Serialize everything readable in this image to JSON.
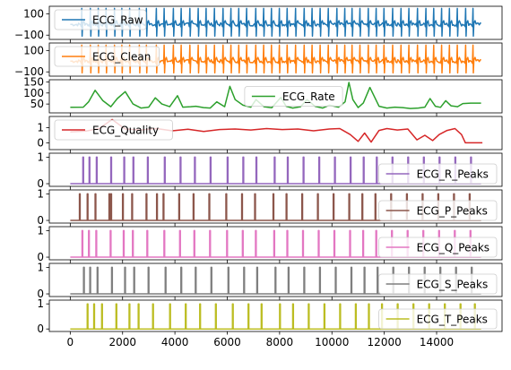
{
  "chart_data": {
    "type": "line",
    "shared_x": {
      "ticks": [
        0,
        2000,
        4000,
        6000,
        8000,
        10000,
        12000,
        14000
      ],
      "tick_labels": [
        "0",
        "2000",
        "4000",
        "6000",
        "8000",
        "10000",
        "12000",
        "14000"
      ],
      "range": [
        -800,
        16500
      ]
    },
    "panels": [
      {
        "name": "ECG_Raw",
        "color": "#1f77b4",
        "kind": "signal",
        "ylim": [
          -140,
          170
        ],
        "yticks": [
          100,
          -100
        ],
        "ytick_labels": [
          "100",
          "−100"
        ],
        "x_range": [
          0,
          15700
        ],
        "amplitude": "-100 to 150",
        "beats_x": [
          450,
          780,
          1080,
          1380,
          1700,
          1980,
          2280,
          2650,
          2920,
          3300,
          3600,
          3950,
          4250,
          4580,
          4900,
          5200,
          5520,
          5850,
          6150,
          6450,
          6750,
          7100,
          7400,
          7700,
          8000,
          8300,
          8620,
          8950,
          9250,
          9560,
          9870,
          10200,
          10500,
          10780,
          11080,
          11400,
          11700,
          12000,
          12330,
          12650,
          12950,
          13280,
          13600,
          13900,
          14200,
          14500,
          14800,
          15120,
          15400
        ],
        "legend": "ECG_Raw",
        "legend_position": "upper-left"
      },
      {
        "name": "ECG_Clean",
        "color": "#ff7f0e",
        "kind": "signal",
        "ylim": [
          -140,
          170
        ],
        "yticks": [
          100,
          -100
        ],
        "ytick_labels": [
          "100",
          "−100"
        ],
        "x_range": [
          0,
          15700
        ],
        "amplitude": "-100 to 150",
        "beats_x": [
          450,
          780,
          1080,
          1380,
          1700,
          1980,
          2280,
          2650,
          2920,
          3300,
          3600,
          3950,
          4250,
          4580,
          4900,
          5200,
          5520,
          5850,
          6150,
          6450,
          6750,
          7100,
          7400,
          7700,
          8000,
          8300,
          8620,
          8950,
          9250,
          9560,
          9870,
          10200,
          10500,
          10780,
          11080,
          11400,
          11700,
          12000,
          12330,
          12650,
          12950,
          13280,
          13600,
          13900,
          14200,
          14500,
          14800,
          15120,
          15400
        ],
        "legend": "ECG_Clean",
        "legend_position": "upper-left"
      },
      {
        "name": "ECG_Rate",
        "color": "#2ca02c",
        "kind": "line",
        "ylim": [
          10,
          160
        ],
        "yticks": [
          150,
          100,
          50
        ],
        "ytick_labels": [
          "150",
          "100",
          "50"
        ],
        "x": [
          0,
          500,
          700,
          950,
          1250,
          1550,
          1800,
          2100,
          2400,
          2700,
          3000,
          3250,
          3500,
          3800,
          4100,
          4300,
          4600,
          4800,
          5100,
          5350,
          5600,
          5900,
          6100,
          6300,
          6600,
          6900,
          7100,
          7400,
          7700,
          8050,
          8250,
          8500,
          8800,
          9050,
          9350,
          9650,
          9900,
          10250,
          10500,
          10650,
          10800,
          11000,
          11200,
          11450,
          11800,
          12100,
          12400,
          12700,
          13000,
          13300,
          13550,
          13750,
          13950,
          14150,
          14350,
          14550,
          14800,
          15000,
          15300,
          15700
        ],
        "y": [
          35,
          36,
          60,
          112,
          65,
          38,
          75,
          106,
          50,
          32,
          36,
          78,
          50,
          38,
          88,
          36,
          38,
          40,
          34,
          32,
          60,
          38,
          130,
          70,
          45,
          36,
          70,
          38,
          33,
          80,
          40,
          32,
          38,
          70,
          40,
          32,
          45,
          36,
          60,
          148,
          70,
          34,
          55,
          125,
          40,
          32,
          36,
          34,
          30,
          32,
          36,
          75,
          40,
          35,
          65,
          42,
          38,
          52,
          54,
          54
        ],
        "legend": "ECG_Rate",
        "legend_position": "center"
      },
      {
        "name": "ECG_Quality",
        "color": "#d62728",
        "kind": "line",
        "ylim": [
          -0.45,
          1.75
        ],
        "yticks": [
          1,
          0
        ],
        "ytick_labels": [
          "1",
          "0"
        ],
        "x": [
          0,
          600,
          1100,
          1600,
          2100,
          2700,
          3300,
          3900,
          4500,
          5100,
          5700,
          6300,
          6900,
          7500,
          8100,
          8700,
          9300,
          9900,
          10300,
          10700,
          11000,
          11250,
          11500,
          11800,
          12100,
          12500,
          12900,
          13250,
          13550,
          13850,
          14100,
          14400,
          14700,
          14950,
          15100,
          15750
        ],
        "y": [
          0.72,
          0.78,
          0.95,
          1.55,
          0.92,
          0.85,
          0.95,
          0.8,
          0.9,
          0.75,
          0.88,
          0.92,
          0.85,
          0.95,
          0.88,
          0.92,
          0.8,
          0.92,
          0.95,
          0.55,
          0.1,
          0.65,
          0.05,
          0.82,
          0.95,
          0.85,
          0.92,
          0.2,
          0.5,
          0.15,
          0.55,
          0.82,
          0.95,
          0.55,
          0.0,
          0.0
        ],
        "legend": "ECG_Quality",
        "legend_position": "upper-left"
      },
      {
        "name": "ECG_R_Peaks",
        "color": "#9467bd",
        "kind": "peaks",
        "ylim": [
          -0.1,
          1.15
        ],
        "yticks": [
          1,
          0
        ],
        "ytick_labels": [
          "1",
          "0"
        ],
        "x_range": [
          0,
          15700
        ],
        "peaks_x": [
          480,
          720,
          1000,
          1550,
          2050,
          2400,
          2950,
          3600,
          4200,
          4750,
          5350,
          6000,
          6600,
          7100,
          7800,
          8300,
          8900,
          9500,
          10100,
          10700,
          11200,
          11700,
          12300,
          12900,
          13500,
          14100,
          14700,
          15300
        ],
        "legend": "ECG_R_Peaks",
        "legend_position": "lower-right"
      },
      {
        "name": "ECG_P_Peaks",
        "color": "#8c564b",
        "kind": "peaks",
        "ylim": [
          -0.1,
          1.15
        ],
        "yticks": [
          1,
          0
        ],
        "ytick_labels": [
          "1",
          "0"
        ],
        "x_range": [
          0,
          15700
        ],
        "peaks_x": [
          350,
          650,
          950,
          1480,
          1550,
          2000,
          2350,
          2900,
          3300,
          3550,
          4150,
          4700,
          5300,
          5950,
          6550,
          7050,
          7750,
          8250,
          8850,
          9450,
          10050,
          10650,
          11150,
          11650,
          12250,
          12850,
          13450,
          14050,
          14650,
          15250
        ],
        "legend": "ECG_P_Peaks",
        "legend_position": "lower-right"
      },
      {
        "name": "ECG_Q_Peaks",
        "color": "#e377c2",
        "kind": "peaks",
        "ylim": [
          -0.1,
          1.15
        ],
        "yticks": [
          1,
          0
        ],
        "ytick_labels": [
          "1",
          "0"
        ],
        "x_range": [
          0,
          15700
        ],
        "peaks_x": [
          450,
          700,
          980,
          1530,
          2030,
          2380,
          2930,
          3580,
          4180,
          4730,
          5330,
          5980,
          6580,
          7080,
          7780,
          8280,
          8880,
          9480,
          10080,
          10680,
          11180,
          11680,
          12280,
          12880,
          13480,
          14080,
          14680,
          15280
        ],
        "legend": "ECG_Q_Peaks",
        "legend_position": "lower-right"
      },
      {
        "name": "ECG_S_Peaks",
        "color": "#7f7f7f",
        "kind": "peaks",
        "ylim": [
          -0.1,
          1.15
        ],
        "yticks": [
          1,
          0
        ],
        "ytick_labels": [
          "1",
          "0"
        ],
        "x_range": [
          0,
          15700
        ],
        "peaks_x": [
          510,
          750,
          1030,
          1580,
          2080,
          2430,
          2980,
          3630,
          4230,
          4780,
          5380,
          6030,
          6630,
          7130,
          7830,
          8330,
          8930,
          9530,
          10130,
          10730,
          11230,
          11730,
          12330,
          12930,
          13530,
          14130,
          14730,
          15330
        ],
        "legend": "ECG_S_Peaks",
        "legend_position": "lower-right"
      },
      {
        "name": "ECG_T_Peaks",
        "color": "#bcbd22",
        "kind": "peaks",
        "ylim": [
          -0.1,
          1.15
        ],
        "yticks": [
          1,
          0
        ],
        "ytick_labels": [
          "1",
          "0"
        ],
        "x_range": [
          0,
          15700
        ],
        "peaks_x": [
          650,
          900,
          1200,
          1750,
          2250,
          2600,
          3150,
          3800,
          4400,
          4950,
          5550,
          6200,
          6800,
          7300,
          8000,
          8500,
          9100,
          9700,
          10300,
          10900,
          11400,
          11900,
          12500,
          13100,
          13700,
          14300,
          14900,
          15450
        ],
        "legend": "ECG_T_Peaks",
        "legend_position": "lower-right"
      }
    ]
  }
}
